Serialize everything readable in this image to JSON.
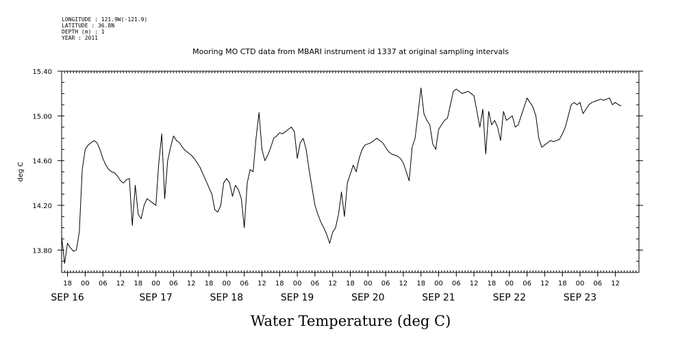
{
  "header": {
    "longitude": "LONGITUDE : 121.9W(-121.9)",
    "latitude": "LATITUDE : 36.8N",
    "depth": "DEPTH (m) : 1",
    "year": "YEAR : 2011"
  },
  "chart_data": {
    "type": "line",
    "title": "Mooring MO CTD data from MBARI instrument id 1337 at original sampling intervals",
    "xlabel": "Water Temperature (deg C)",
    "ylabel": "deg C",
    "ylim": [
      13.6,
      15.4
    ],
    "xlim": [
      "2011-09-15T16:00",
      "2011-09-23T20:00"
    ],
    "yticks": [
      13.8,
      14.2,
      14.6,
      15.0,
      15.4
    ],
    "ytick_labels": [
      "13.80",
      "14.20",
      "14.60",
      "15.00",
      "15.40"
    ],
    "hour_ticks": [
      {
        "t": "2011-09-15T18:00",
        "label": "18"
      },
      {
        "t": "2011-09-16T00:00",
        "label": "00"
      },
      {
        "t": "2011-09-16T06:00",
        "label": "06"
      },
      {
        "t": "2011-09-16T12:00",
        "label": "12"
      },
      {
        "t": "2011-09-16T18:00",
        "label": "18"
      },
      {
        "t": "2011-09-17T00:00",
        "label": "00"
      },
      {
        "t": "2011-09-17T06:00",
        "label": "06"
      },
      {
        "t": "2011-09-17T12:00",
        "label": "12"
      },
      {
        "t": "2011-09-17T18:00",
        "label": "18"
      },
      {
        "t": "2011-09-18T00:00",
        "label": "00"
      },
      {
        "t": "2011-09-18T06:00",
        "label": "06"
      },
      {
        "t": "2011-09-18T12:00",
        "label": "12"
      },
      {
        "t": "2011-09-18T18:00",
        "label": "18"
      },
      {
        "t": "2011-09-19T00:00",
        "label": "00"
      },
      {
        "t": "2011-09-19T06:00",
        "label": "06"
      },
      {
        "t": "2011-09-19T12:00",
        "label": "12"
      },
      {
        "t": "2011-09-19T18:00",
        "label": "18"
      },
      {
        "t": "2011-09-20T00:00",
        "label": "00"
      },
      {
        "t": "2011-09-20T06:00",
        "label": "06"
      },
      {
        "t": "2011-09-20T12:00",
        "label": "12"
      },
      {
        "t": "2011-09-20T18:00",
        "label": "18"
      },
      {
        "t": "2011-09-21T00:00",
        "label": "00"
      },
      {
        "t": "2011-09-21T06:00",
        "label": "06"
      },
      {
        "t": "2011-09-21T12:00",
        "label": "12"
      },
      {
        "t": "2011-09-21T18:00",
        "label": "18"
      },
      {
        "t": "2011-09-22T00:00",
        "label": "00"
      },
      {
        "t": "2011-09-22T06:00",
        "label": "06"
      },
      {
        "t": "2011-09-22T12:00",
        "label": "12"
      },
      {
        "t": "2011-09-22T18:00",
        "label": "18"
      },
      {
        "t": "2011-09-23T00:00",
        "label": "00"
      },
      {
        "t": "2011-09-23T06:00",
        "label": "06"
      },
      {
        "t": "2011-09-23T12:00",
        "label": "12"
      }
    ],
    "day_labels": [
      {
        "t": "2011-09-15T18:00",
        "label": "SEP 16"
      },
      {
        "t": "2011-09-17T00:00",
        "label": "SEP 17"
      },
      {
        "t": "2011-09-18T00:00",
        "label": "SEP 18"
      },
      {
        "t": "2011-09-19T00:00",
        "label": "SEP 19"
      },
      {
        "t": "2011-09-20T00:00",
        "label": "SEP 20"
      },
      {
        "t": "2011-09-21T00:00",
        "label": "SEP 21"
      },
      {
        "t": "2011-09-22T00:00",
        "label": "SEP 22"
      },
      {
        "t": "2011-09-23T00:00",
        "label": "SEP 23"
      }
    ],
    "grid": false,
    "series": [
      {
        "color": "#000000",
        "points": [
          [
            "2011-09-15T16:00",
            13.92
          ],
          [
            "2011-09-15T17:00",
            13.68
          ],
          [
            "2011-09-15T18:00",
            13.86
          ],
          [
            "2011-09-15T19:00",
            13.82
          ],
          [
            "2011-09-15T20:00",
            13.79
          ],
          [
            "2011-09-15T21:00",
            13.8
          ],
          [
            "2011-09-15T22:00",
            13.96
          ],
          [
            "2011-09-15T23:00",
            14.52
          ],
          [
            "2011-09-16T00:00",
            14.7
          ],
          [
            "2011-09-16T01:00",
            14.74
          ],
          [
            "2011-09-16T02:00",
            14.76
          ],
          [
            "2011-09-16T03:00",
            14.78
          ],
          [
            "2011-09-16T04:00",
            14.76
          ],
          [
            "2011-09-16T05:00",
            14.7
          ],
          [
            "2011-09-16T06:00",
            14.62
          ],
          [
            "2011-09-16T07:00",
            14.56
          ],
          [
            "2011-09-16T08:00",
            14.52
          ],
          [
            "2011-09-16T09:00",
            14.5
          ],
          [
            "2011-09-16T10:00",
            14.49
          ],
          [
            "2011-09-16T11:00",
            14.46
          ],
          [
            "2011-09-16T12:00",
            14.42
          ],
          [
            "2011-09-16T13:00",
            14.4
          ],
          [
            "2011-09-16T14:00",
            14.43
          ],
          [
            "2011-09-16T15:00",
            14.44
          ],
          [
            "2011-09-16T16:00",
            14.02
          ],
          [
            "2011-09-16T17:00",
            14.38
          ],
          [
            "2011-09-16T18:00",
            14.12
          ],
          [
            "2011-09-16T19:00",
            14.08
          ],
          [
            "2011-09-16T20:00",
            14.2
          ],
          [
            "2011-09-16T21:00",
            14.26
          ],
          [
            "2011-09-16T22:00",
            14.24
          ],
          [
            "2011-09-16T23:00",
            14.22
          ],
          [
            "2011-09-17T00:00",
            14.2
          ],
          [
            "2011-09-17T01:00",
            14.58
          ],
          [
            "2011-09-17T02:00",
            14.84
          ],
          [
            "2011-09-17T03:00",
            14.26
          ],
          [
            "2011-09-17T04:00",
            14.6
          ],
          [
            "2011-09-17T05:00",
            14.72
          ],
          [
            "2011-09-17T06:00",
            14.82
          ],
          [
            "2011-09-17T07:00",
            14.78
          ],
          [
            "2011-09-17T08:00",
            14.76
          ],
          [
            "2011-09-17T09:00",
            14.72
          ],
          [
            "2011-09-17T10:00",
            14.69
          ],
          [
            "2011-09-17T11:00",
            14.67
          ],
          [
            "2011-09-17T12:00",
            14.65
          ],
          [
            "2011-09-17T13:00",
            14.62
          ],
          [
            "2011-09-17T14:00",
            14.58
          ],
          [
            "2011-09-17T15:00",
            14.54
          ],
          [
            "2011-09-17T16:00",
            14.48
          ],
          [
            "2011-09-17T17:00",
            14.42
          ],
          [
            "2011-09-17T18:00",
            14.36
          ],
          [
            "2011-09-17T19:00",
            14.3
          ],
          [
            "2011-09-17T20:00",
            14.16
          ],
          [
            "2011-09-17T21:00",
            14.14
          ],
          [
            "2011-09-17T22:00",
            14.2
          ],
          [
            "2011-09-17T23:00",
            14.4
          ],
          [
            "2011-09-18T00:00",
            14.44
          ],
          [
            "2011-09-18T01:00",
            14.4
          ],
          [
            "2011-09-18T02:00",
            14.28
          ],
          [
            "2011-09-18T03:00",
            14.38
          ],
          [
            "2011-09-18T04:00",
            14.34
          ],
          [
            "2011-09-18T05:00",
            14.26
          ],
          [
            "2011-09-18T06:00",
            14.0
          ],
          [
            "2011-09-18T07:00",
            14.4
          ],
          [
            "2011-09-18T08:00",
            14.52
          ],
          [
            "2011-09-18T09:00",
            14.5
          ],
          [
            "2011-09-18T10:00",
            14.8
          ],
          [
            "2011-09-18T11:00",
            15.03
          ],
          [
            "2011-09-18T12:00",
            14.7
          ],
          [
            "2011-09-18T13:00",
            14.6
          ],
          [
            "2011-09-18T14:00",
            14.65
          ],
          [
            "2011-09-18T15:00",
            14.72
          ],
          [
            "2011-09-18T16:00",
            14.8
          ],
          [
            "2011-09-18T17:00",
            14.82
          ],
          [
            "2011-09-18T18:00",
            14.85
          ],
          [
            "2011-09-18T19:00",
            14.84
          ],
          [
            "2011-09-18T20:00",
            14.86
          ],
          [
            "2011-09-18T21:00",
            14.88
          ],
          [
            "2011-09-18T22:00",
            14.9
          ],
          [
            "2011-09-18T23:00",
            14.86
          ],
          [
            "2011-09-19T00:00",
            14.62
          ],
          [
            "2011-09-19T01:00",
            14.76
          ],
          [
            "2011-09-19T02:00",
            14.8
          ],
          [
            "2011-09-19T03:00",
            14.7
          ],
          [
            "2011-09-19T04:00",
            14.52
          ],
          [
            "2011-09-19T05:00",
            14.36
          ],
          [
            "2011-09-19T06:00",
            14.2
          ],
          [
            "2011-09-19T07:00",
            14.12
          ],
          [
            "2011-09-19T08:00",
            14.05
          ],
          [
            "2011-09-19T09:00",
            14.0
          ],
          [
            "2011-09-19T10:00",
            13.94
          ],
          [
            "2011-09-19T11:00",
            13.86
          ],
          [
            "2011-09-19T12:00",
            13.96
          ],
          [
            "2011-09-19T13:00",
            14.0
          ],
          [
            "2011-09-19T14:00",
            14.12
          ],
          [
            "2011-09-19T15:00",
            14.32
          ],
          [
            "2011-09-19T16:00",
            14.1
          ],
          [
            "2011-09-19T17:00",
            14.4
          ],
          [
            "2011-09-19T18:00",
            14.48
          ],
          [
            "2011-09-19T19:00",
            14.56
          ],
          [
            "2011-09-19T20:00",
            14.5
          ],
          [
            "2011-09-19T21:00",
            14.62
          ],
          [
            "2011-09-19T22:00",
            14.7
          ],
          [
            "2011-09-19T23:00",
            14.74
          ],
          [
            "2011-09-20T00:00",
            14.75
          ],
          [
            "2011-09-20T01:00",
            14.76
          ],
          [
            "2011-09-20T02:00",
            14.78
          ],
          [
            "2011-09-20T03:00",
            14.8
          ],
          [
            "2011-09-20T04:00",
            14.78
          ],
          [
            "2011-09-20T05:00",
            14.76
          ],
          [
            "2011-09-20T06:00",
            14.72
          ],
          [
            "2011-09-20T07:00",
            14.68
          ],
          [
            "2011-09-20T08:00",
            14.66
          ],
          [
            "2011-09-20T09:00",
            14.65
          ],
          [
            "2011-09-20T10:00",
            14.64
          ],
          [
            "2011-09-20T11:00",
            14.62
          ],
          [
            "2011-09-20T12:00",
            14.58
          ],
          [
            "2011-09-20T13:00",
            14.5
          ],
          [
            "2011-09-20T14:00",
            14.42
          ],
          [
            "2011-09-20T15:00",
            14.72
          ],
          [
            "2011-09-20T16:00",
            14.8
          ],
          [
            "2011-09-20T17:00",
            15.02
          ],
          [
            "2011-09-20T18:00",
            15.25
          ],
          [
            "2011-09-20T19:00",
            15.02
          ],
          [
            "2011-09-20T20:00",
            14.96
          ],
          [
            "2011-09-20T21:00",
            14.92
          ],
          [
            "2011-09-20T22:00",
            14.75
          ],
          [
            "2011-09-20T23:00",
            14.7
          ],
          [
            "2011-09-21T00:00",
            14.88
          ],
          [
            "2011-09-21T01:00",
            14.92
          ],
          [
            "2011-09-21T02:00",
            14.96
          ],
          [
            "2011-09-21T03:00",
            14.98
          ],
          [
            "2011-09-21T04:00",
            15.1
          ],
          [
            "2011-09-21T05:00",
            15.22
          ],
          [
            "2011-09-21T06:00",
            15.24
          ],
          [
            "2011-09-21T07:00",
            15.22
          ],
          [
            "2011-09-21T08:00",
            15.2
          ],
          [
            "2011-09-21T09:00",
            15.21
          ],
          [
            "2011-09-21T10:00",
            15.22
          ],
          [
            "2011-09-21T11:00",
            15.2
          ],
          [
            "2011-09-21T12:00",
            15.18
          ],
          [
            "2011-09-21T13:00",
            15.04
          ],
          [
            "2011-09-21T14:00",
            14.9
          ],
          [
            "2011-09-21T15:00",
            15.06
          ],
          [
            "2011-09-21T16:00",
            14.66
          ],
          [
            "2011-09-21T17:00",
            15.04
          ],
          [
            "2011-09-21T18:00",
            14.92
          ],
          [
            "2011-09-21T19:00",
            14.96
          ],
          [
            "2011-09-21T20:00",
            14.9
          ],
          [
            "2011-09-21T21:00",
            14.78
          ],
          [
            "2011-09-21T22:00",
            15.04
          ],
          [
            "2011-09-21T23:00",
            14.96
          ],
          [
            "2011-09-22T00:00",
            14.98
          ],
          [
            "2011-09-22T01:00",
            15.0
          ],
          [
            "2011-09-22T02:00",
            14.9
          ],
          [
            "2011-09-22T03:00",
            14.92
          ],
          [
            "2011-09-22T04:00",
            15.0
          ],
          [
            "2011-09-22T05:00",
            15.08
          ],
          [
            "2011-09-22T06:00",
            15.16
          ],
          [
            "2011-09-22T07:00",
            15.12
          ],
          [
            "2011-09-22T08:00",
            15.08
          ],
          [
            "2011-09-22T09:00",
            15.0
          ],
          [
            "2011-09-22T10:00",
            14.8
          ],
          [
            "2011-09-22T11:00",
            14.72
          ],
          [
            "2011-09-22T12:00",
            14.74
          ],
          [
            "2011-09-22T13:00",
            14.76
          ],
          [
            "2011-09-22T14:00",
            14.78
          ],
          [
            "2011-09-22T15:00",
            14.77
          ],
          [
            "2011-09-22T16:00",
            14.78
          ],
          [
            "2011-09-22T17:00",
            14.79
          ],
          [
            "2011-09-22T18:00",
            14.84
          ],
          [
            "2011-09-22T19:00",
            14.9
          ],
          [
            "2011-09-22T20:00",
            15.0
          ],
          [
            "2011-09-22T21:00",
            15.1
          ],
          [
            "2011-09-22T22:00",
            15.12
          ],
          [
            "2011-09-22T23:00",
            15.1
          ],
          [
            "2011-09-23T00:00",
            15.12
          ],
          [
            "2011-09-23T01:00",
            15.02
          ],
          [
            "2011-09-23T02:00",
            15.06
          ],
          [
            "2011-09-23T03:00",
            15.1
          ],
          [
            "2011-09-23T04:00",
            15.12
          ],
          [
            "2011-09-23T05:00",
            15.13
          ],
          [
            "2011-09-23T06:00",
            15.14
          ],
          [
            "2011-09-23T07:00",
            15.15
          ],
          [
            "2011-09-23T08:00",
            15.14
          ],
          [
            "2011-09-23T09:00",
            15.15
          ],
          [
            "2011-09-23T10:00",
            15.16
          ],
          [
            "2011-09-23T11:00",
            15.1
          ],
          [
            "2011-09-23T12:00",
            15.12
          ],
          [
            "2011-09-23T13:00",
            15.1
          ],
          [
            "2011-09-23T14:00",
            15.09
          ]
        ]
      }
    ]
  }
}
